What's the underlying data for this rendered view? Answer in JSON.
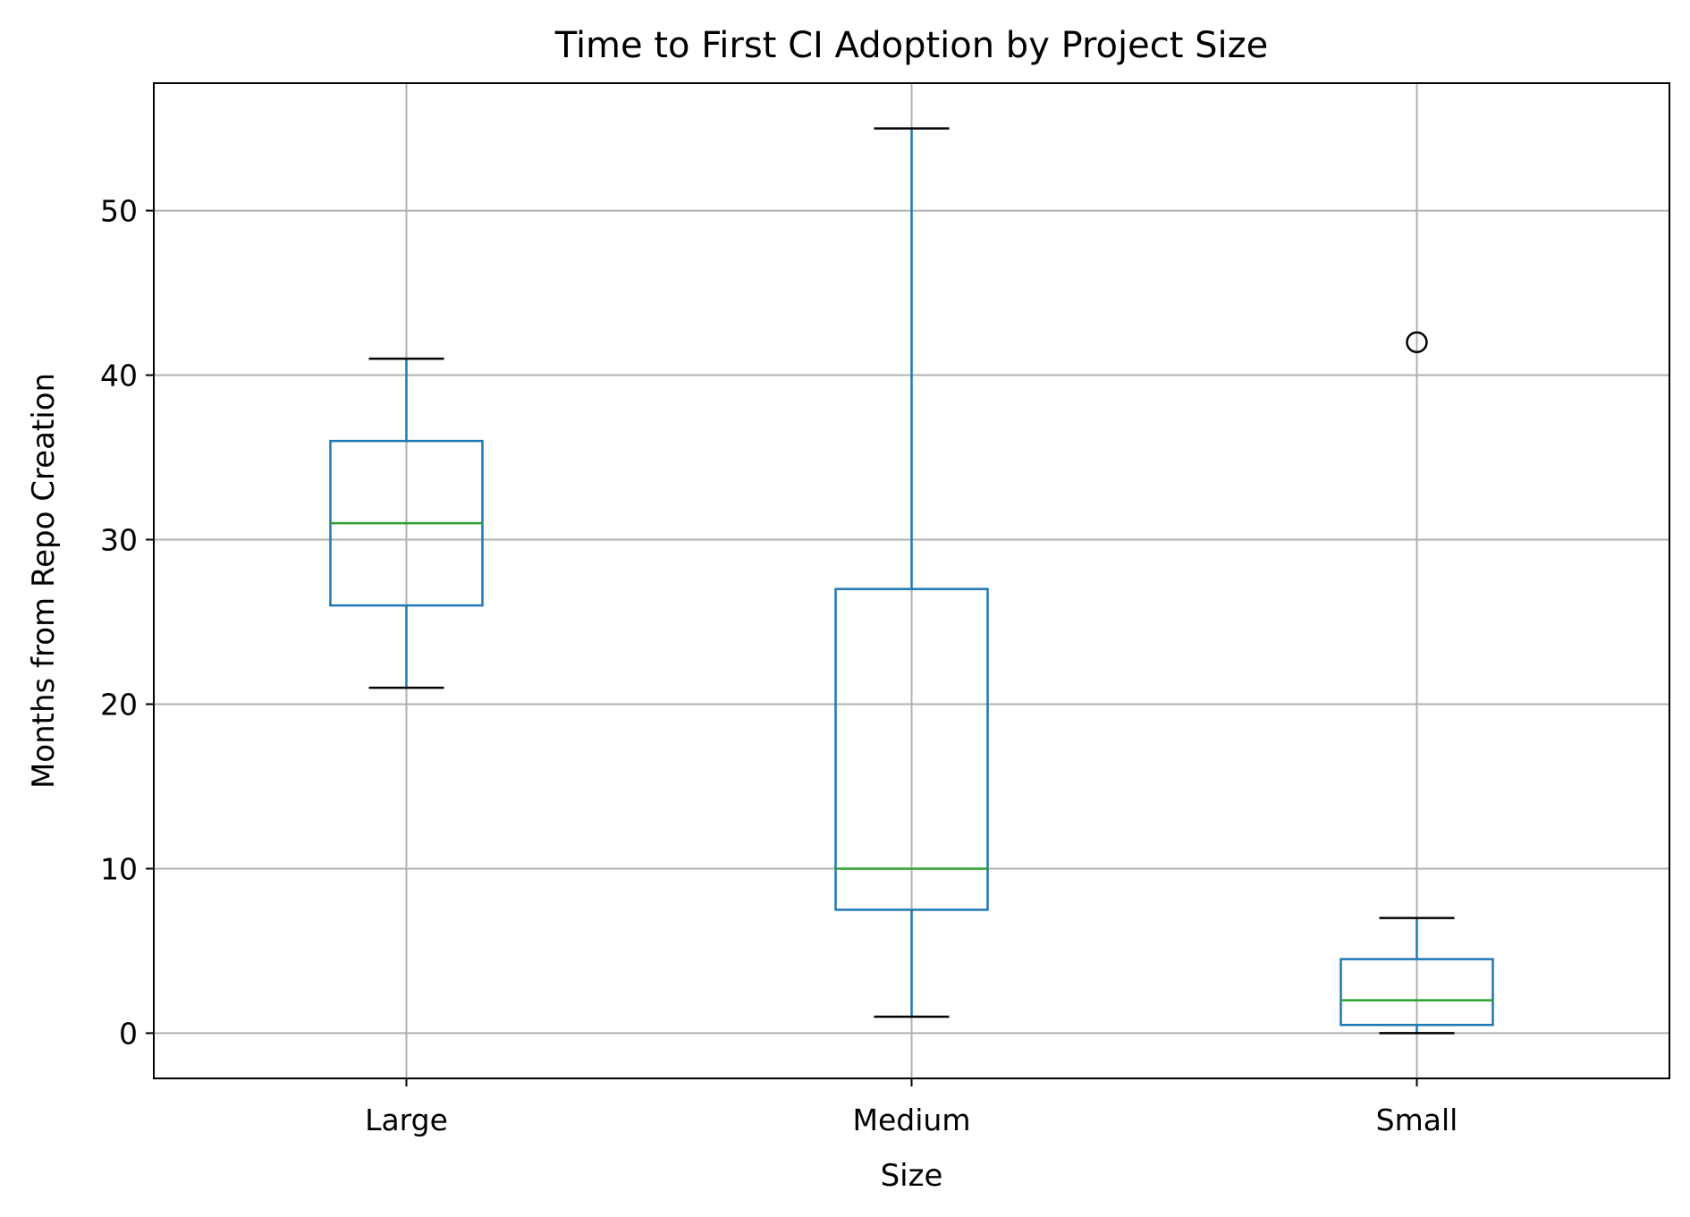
{
  "chart_data": {
    "type": "box",
    "title": "Time to First CI Adoption by Project Size",
    "xlabel": "Size",
    "ylabel": "Months from Repo Creation",
    "categories": [
      "Large",
      "Medium",
      "Small"
    ],
    "ylim": [
      -2.75,
      57.75
    ],
    "yticks": [
      0,
      10,
      20,
      30,
      40,
      50
    ],
    "grid": true,
    "boxes": [
      {
        "category": "Large",
        "whisker_low": 21,
        "q1": 26,
        "median": 31,
        "q3": 36,
        "whisker_high": 41,
        "outliers": []
      },
      {
        "category": "Medium",
        "whisker_low": 1,
        "q1": 7.5,
        "median": 10,
        "q3": 27,
        "whisker_high": 55,
        "outliers": []
      },
      {
        "category": "Small",
        "whisker_low": 0,
        "q1": 0.5,
        "median": 2,
        "q3": 4.5,
        "whisker_high": 7,
        "outliers": [
          42
        ]
      }
    ],
    "colors": {
      "box": "#1f77b4",
      "median": "#2ca02c",
      "whisker_cap": "#000000",
      "grid": "#b0b0b0",
      "axes": "#000000"
    }
  }
}
